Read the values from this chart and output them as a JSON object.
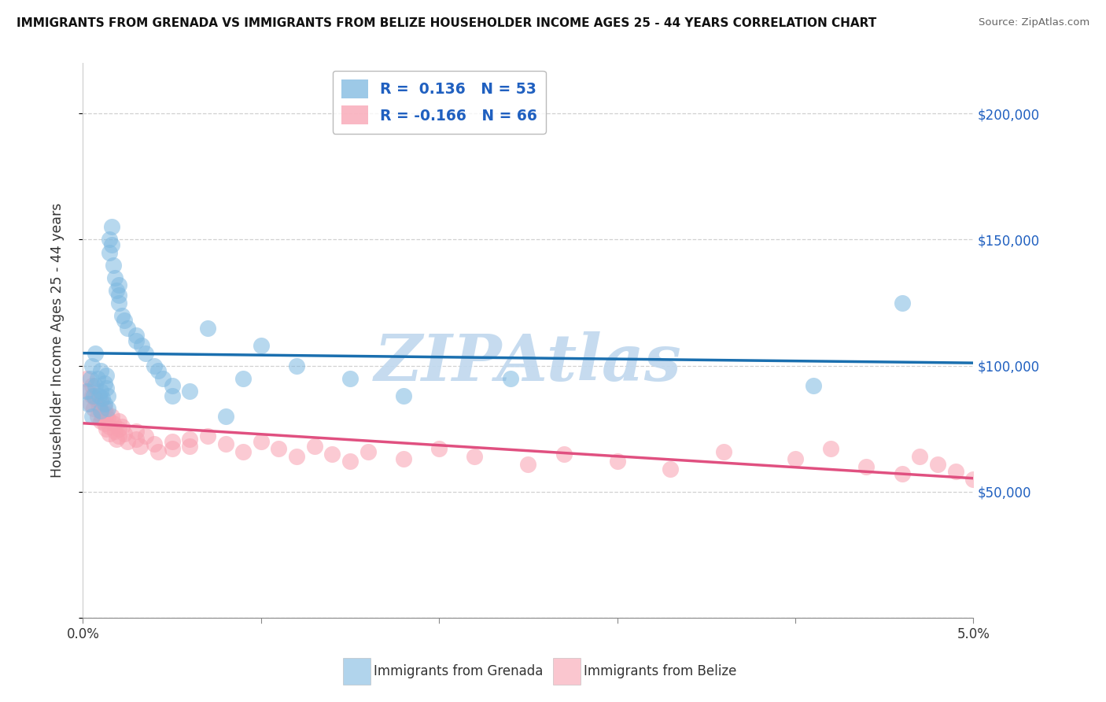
{
  "title": "IMMIGRANTS FROM GRENADA VS IMMIGRANTS FROM BELIZE HOUSEHOLDER INCOME AGES 25 - 44 YEARS CORRELATION CHART",
  "source": "Source: ZipAtlas.com",
  "ylabel": "Householder Income Ages 25 - 44 years",
  "xlim": [
    0.0,
    0.05
  ],
  "ylim": [
    0,
    220000
  ],
  "yticks": [
    0,
    50000,
    100000,
    150000,
    200000
  ],
  "ytick_labels": [
    "",
    "$50,000",
    "$100,000",
    "$150,000",
    "$200,000"
  ],
  "xticks": [
    0.0,
    0.01,
    0.02,
    0.03,
    0.04,
    0.05
  ],
  "xtick_labels": [
    "0.0%",
    "",
    "",
    "",
    "",
    "5.0%"
  ],
  "grenada_R": 0.136,
  "grenada_N": 53,
  "belize_R": -0.166,
  "belize_N": 66,
  "grenada_color": "#7db8e0",
  "belize_color": "#f8a0b0",
  "grenada_line_color": "#1a6faf",
  "belize_line_color": "#e05080",
  "watermark_text": "ZIPAtlas",
  "watermark_color": "#c0d8ee",
  "background_color": "#ffffff",
  "grenada_label": "Immigrants from Grenada",
  "belize_label": "Immigrants from Belize",
  "legend_text_color": "#2060c0",
  "right_axis_color": "#2060c0",
  "grenada_x": [
    0.0002,
    0.0003,
    0.0004,
    0.0005,
    0.0005,
    0.0006,
    0.0007,
    0.0007,
    0.0008,
    0.0009,
    0.001,
    0.001,
    0.001,
    0.0011,
    0.0012,
    0.0012,
    0.0013,
    0.0013,
    0.0014,
    0.0014,
    0.0015,
    0.0015,
    0.0016,
    0.0016,
    0.0017,
    0.0018,
    0.0019,
    0.002,
    0.002,
    0.002,
    0.0022,
    0.0023,
    0.0025,
    0.003,
    0.003,
    0.0033,
    0.0035,
    0.004,
    0.0042,
    0.0045,
    0.005,
    0.005,
    0.006,
    0.007,
    0.008,
    0.009,
    0.01,
    0.012,
    0.015,
    0.018,
    0.024,
    0.041,
    0.046
  ],
  "grenada_y": [
    90000,
    85000,
    95000,
    80000,
    100000,
    88000,
    92000,
    105000,
    95000,
    88000,
    82000,
    90000,
    98000,
    87000,
    93000,
    85000,
    91000,
    96000,
    83000,
    88000,
    145000,
    150000,
    155000,
    148000,
    140000,
    135000,
    130000,
    125000,
    128000,
    132000,
    120000,
    118000,
    115000,
    110000,
    112000,
    108000,
    105000,
    100000,
    98000,
    95000,
    92000,
    88000,
    90000,
    115000,
    80000,
    95000,
    108000,
    100000,
    95000,
    88000,
    95000,
    92000,
    125000
  ],
  "belize_x": [
    0.0002,
    0.0003,
    0.0004,
    0.0005,
    0.0005,
    0.0006,
    0.0007,
    0.0008,
    0.0009,
    0.001,
    0.001,
    0.001,
    0.0011,
    0.0012,
    0.0012,
    0.0013,
    0.0013,
    0.0014,
    0.0015,
    0.0015,
    0.0016,
    0.0017,
    0.0018,
    0.0019,
    0.002,
    0.002,
    0.002,
    0.0022,
    0.0023,
    0.0025,
    0.003,
    0.003,
    0.0032,
    0.0035,
    0.004,
    0.0042,
    0.005,
    0.005,
    0.006,
    0.006,
    0.007,
    0.008,
    0.009,
    0.01,
    0.011,
    0.012,
    0.013,
    0.014,
    0.015,
    0.016,
    0.018,
    0.02,
    0.022,
    0.025,
    0.027,
    0.03,
    0.033,
    0.036,
    0.04,
    0.042,
    0.044,
    0.046,
    0.047,
    0.048,
    0.049,
    0.05
  ],
  "belize_y": [
    95000,
    90000,
    85000,
    92000,
    88000,
    83000,
    87000,
    80000,
    84000,
    78000,
    82000,
    86000,
    79000,
    83000,
    77000,
    81000,
    75000,
    79000,
    76000,
    73000,
    80000,
    77000,
    74000,
    71000,
    78000,
    75000,
    72000,
    76000,
    73000,
    70000,
    74000,
    71000,
    68000,
    72000,
    69000,
    66000,
    70000,
    67000,
    71000,
    68000,
    72000,
    69000,
    66000,
    70000,
    67000,
    64000,
    68000,
    65000,
    62000,
    66000,
    63000,
    67000,
    64000,
    61000,
    65000,
    62000,
    59000,
    66000,
    63000,
    67000,
    60000,
    57000,
    64000,
    61000,
    58000,
    55000
  ]
}
